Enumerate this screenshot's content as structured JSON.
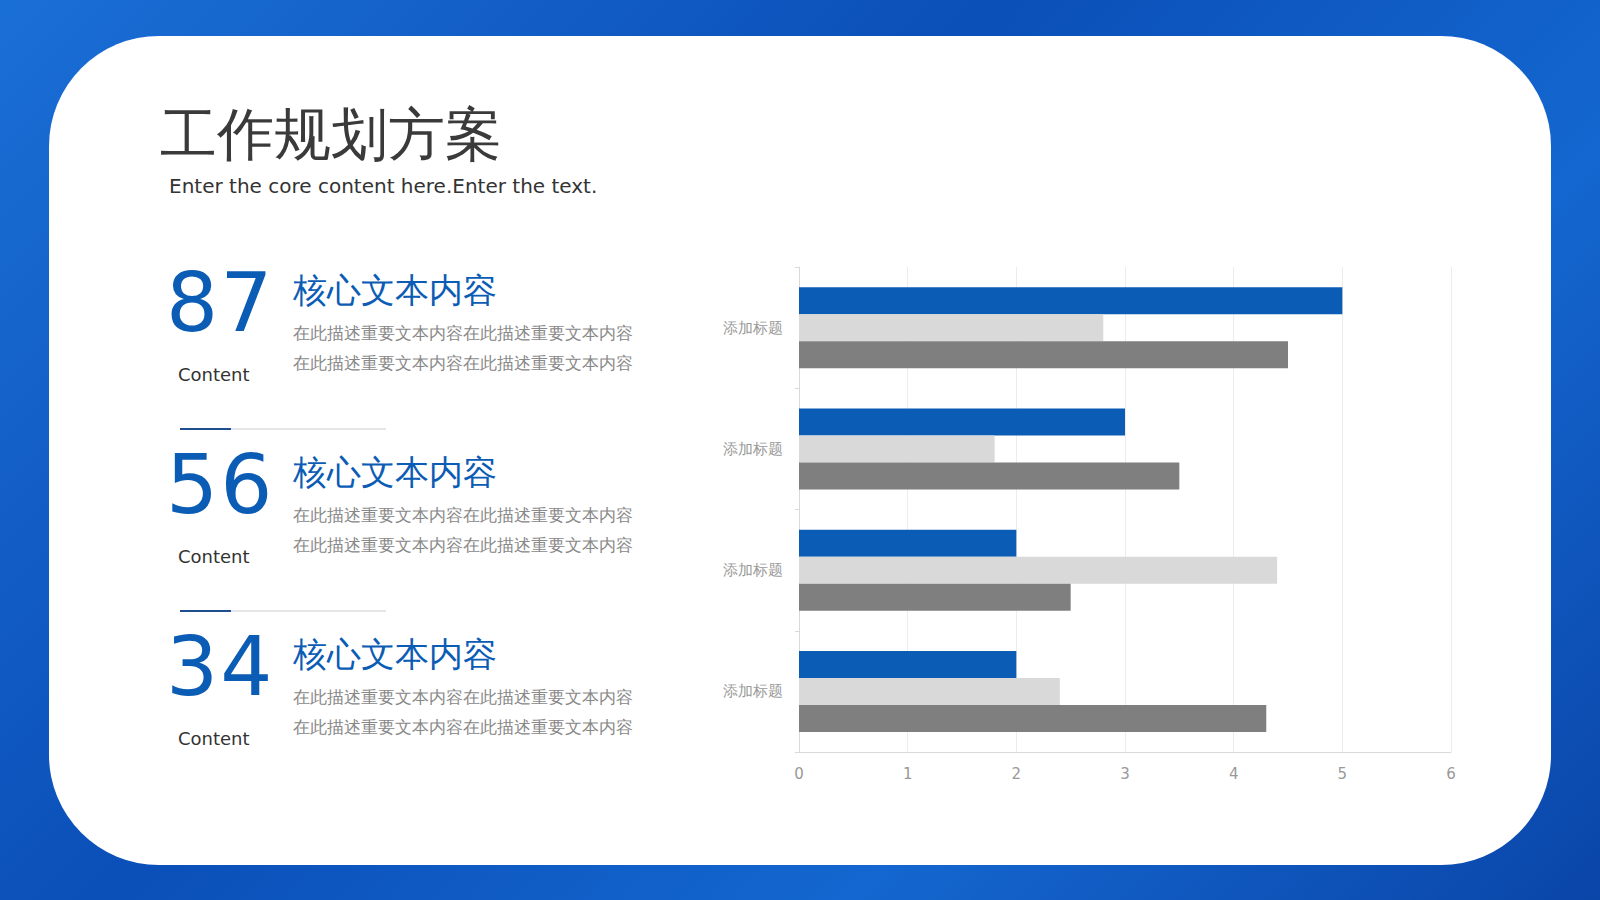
{
  "header": {
    "title": "工作规划方案",
    "subtitle": "Enter the core content here.Enter the text."
  },
  "stats": [
    {
      "number": "87",
      "caption": "Content",
      "heading": "核心文本内容",
      "lines": [
        "在此描述重要文本内容在此描述重要文本内容",
        "在此描述重要文本内容在此描述重要文本内容"
      ]
    },
    {
      "number": "56",
      "caption": "Content",
      "heading": "核心文本内容",
      "lines": [
        "在此描述重要文本内容在此描述重要文本内容",
        "在此描述重要文本内容在此描述重要文本内容"
      ]
    },
    {
      "number": "34",
      "caption": "Content",
      "heading": "核心文本内容",
      "lines": [
        "在此描述重要文本内容在此描述重要文本内容",
        "在此描述重要文本内容在此描述重要文本内容"
      ]
    }
  ],
  "chart_data": {
    "type": "bar",
    "orientation": "horizontal",
    "grid": true,
    "categories": [
      "添加标题",
      "添加标题",
      "添加标题",
      "添加标题"
    ],
    "series": [
      {
        "color": "#0b5cb5",
        "values": [
          5,
          3,
          2,
          2
        ]
      },
      {
        "color": "#d9d9d9",
        "values": [
          2.8,
          1.8,
          4.4,
          2.4
        ]
      },
      {
        "color": "#7f7f7f",
        "values": [
          4.5,
          3.5,
          2.5,
          4.3
        ]
      }
    ],
    "xlim": [
      0,
      6
    ],
    "xticks": [
      0,
      1,
      2,
      3,
      4,
      5,
      6
    ]
  }
}
